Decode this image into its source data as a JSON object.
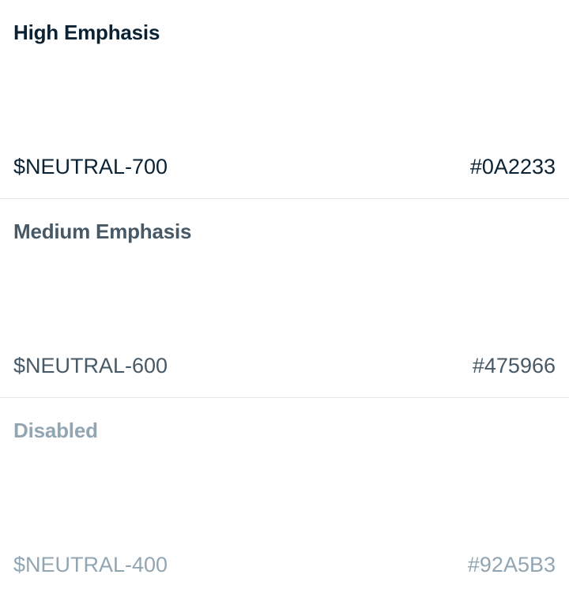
{
  "swatches": [
    {
      "title": "High Emphasis",
      "token": "$NEUTRAL-700",
      "hex": "#0A2233",
      "color": "#0A2233"
    },
    {
      "title": "Medium Emphasis",
      "token": "$NEUTRAL-600",
      "hex": "#475966",
      "color": "#475966"
    },
    {
      "title": "Disabled",
      "token": "$NEUTRAL-400",
      "hex": "#92A5B3",
      "color": "#92A5B3"
    }
  ],
  "divider_color": "#E6E9EC",
  "background_color": "#FFFFFF"
}
